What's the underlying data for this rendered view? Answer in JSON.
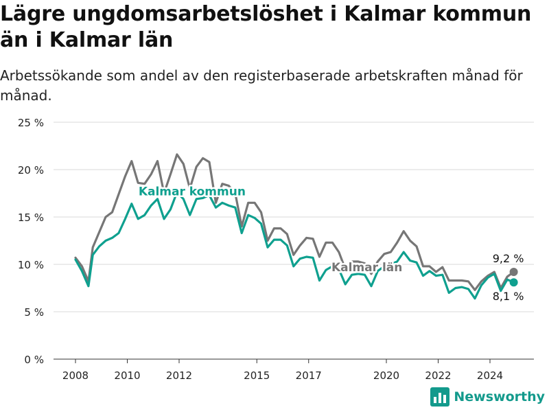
{
  "title": "Lägre ungdomsarbetslöshet i Kalmar kommun än i Kalmar län",
  "subtitle": "Arbetssökande som andel av den registerbaserade arbetskraften månad för månad.",
  "brand": "Newsworthy",
  "colors": {
    "kommun": "#0fa08f",
    "lan": "#767676",
    "grid": "#d9d9d9",
    "text": "#222222"
  },
  "chart_data": {
    "type": "line",
    "xlabel": "",
    "ylabel": "",
    "ylim": [
      0,
      25
    ],
    "xlim": [
      "2007-01",
      "2025-12"
    ],
    "grid": true,
    "legend": "inline labels",
    "yticks": [
      0,
      5,
      10,
      15,
      20,
      25
    ],
    "yticklabels": [
      "0 %",
      "5 %",
      "10 %",
      "15 %",
      "20 %",
      "25 %"
    ],
    "xticks": [
      "2008-01",
      "2010-01",
      "2012-01",
      "2015-01",
      "2017-01",
      "2020-01",
      "2022-01",
      "2024-01"
    ],
    "xticklabels": [
      "2008",
      "2010",
      "2012",
      "2015",
      "2017",
      "2020",
      "2022",
      "2024"
    ],
    "series": [
      {
        "name": "Kalmar län",
        "color": "#767676",
        "points": [
          [
            "2008-01",
            10.7
          ],
          [
            "2008-04",
            9.8
          ],
          [
            "2008-07",
            8.2
          ],
          [
            "2008-09",
            11.8
          ],
          [
            "2008-12",
            13.4
          ],
          [
            "2009-03",
            15.0
          ],
          [
            "2009-06",
            15.5
          ],
          [
            "2009-09",
            17.4
          ],
          [
            "2009-12",
            19.3
          ],
          [
            "2010-03",
            20.9
          ],
          [
            "2010-06",
            18.6
          ],
          [
            "2010-09",
            18.5
          ],
          [
            "2010-12",
            19.5
          ],
          [
            "2011-03",
            20.9
          ],
          [
            "2011-06",
            17.5
          ],
          [
            "2011-09",
            19.5
          ],
          [
            "2011-12",
            21.6
          ],
          [
            "2012-03",
            20.6
          ],
          [
            "2012-06",
            18.0
          ],
          [
            "2012-09",
            20.3
          ],
          [
            "2012-12",
            21.2
          ],
          [
            "2013-03",
            20.8
          ],
          [
            "2013-06",
            16.5
          ],
          [
            "2013-09",
            18.5
          ],
          [
            "2013-12",
            18.3
          ],
          [
            "2014-03",
            17.5
          ],
          [
            "2014-06",
            14.0
          ],
          [
            "2014-09",
            16.5
          ],
          [
            "2014-12",
            16.5
          ],
          [
            "2015-03",
            15.5
          ],
          [
            "2015-06",
            12.5
          ],
          [
            "2015-09",
            13.8
          ],
          [
            "2015-12",
            13.8
          ],
          [
            "2016-03",
            13.2
          ],
          [
            "2016-06",
            11.0
          ],
          [
            "2016-09",
            12.0
          ],
          [
            "2016-12",
            12.8
          ],
          [
            "2017-03",
            12.7
          ],
          [
            "2017-06",
            10.8
          ],
          [
            "2017-09",
            12.3
          ],
          [
            "2017-12",
            12.3
          ],
          [
            "2018-03",
            11.3
          ],
          [
            "2018-06",
            9.5
          ],
          [
            "2018-09",
            10.3
          ],
          [
            "2018-12",
            10.3
          ],
          [
            "2019-03",
            10.1
          ],
          [
            "2019-06",
            9.0
          ],
          [
            "2019-09",
            10.3
          ],
          [
            "2019-12",
            11.1
          ],
          [
            "2020-03",
            11.3
          ],
          [
            "2020-06",
            12.3
          ],
          [
            "2020-09",
            13.5
          ],
          [
            "2020-12",
            12.5
          ],
          [
            "2021-03",
            11.9
          ],
          [
            "2021-06",
            9.8
          ],
          [
            "2021-09",
            9.8
          ],
          [
            "2021-12",
            9.2
          ],
          [
            "2022-03",
            9.7
          ],
          [
            "2022-06",
            8.3
          ],
          [
            "2022-09",
            8.3
          ],
          [
            "2022-12",
            8.3
          ],
          [
            "2023-03",
            8.2
          ],
          [
            "2023-06",
            7.3
          ],
          [
            "2023-09",
            8.2
          ],
          [
            "2023-12",
            8.8
          ],
          [
            "2024-03",
            9.2
          ],
          [
            "2024-06",
            7.5
          ],
          [
            "2024-09",
            8.7
          ],
          [
            "2024-12",
            9.2
          ]
        ]
      },
      {
        "name": "Kalmar kommun",
        "color": "#0fa08f",
        "points": [
          [
            "2008-01",
            10.5
          ],
          [
            "2008-04",
            9.3
          ],
          [
            "2008-07",
            7.7
          ],
          [
            "2008-09",
            11.0
          ],
          [
            "2008-12",
            11.9
          ],
          [
            "2009-03",
            12.5
          ],
          [
            "2009-06",
            12.8
          ],
          [
            "2009-09",
            13.3
          ],
          [
            "2009-12",
            14.8
          ],
          [
            "2010-03",
            16.4
          ],
          [
            "2010-06",
            14.8
          ],
          [
            "2010-09",
            15.2
          ],
          [
            "2010-12",
            16.2
          ],
          [
            "2011-03",
            16.9
          ],
          [
            "2011-06",
            14.8
          ],
          [
            "2011-09",
            15.8
          ],
          [
            "2011-12",
            17.6
          ],
          [
            "2012-03",
            16.9
          ],
          [
            "2012-06",
            15.2
          ],
          [
            "2012-09",
            16.9
          ],
          [
            "2012-12",
            17.0
          ],
          [
            "2013-03",
            17.3
          ],
          [
            "2013-06",
            16.0
          ],
          [
            "2013-09",
            16.5
          ],
          [
            "2013-12",
            16.2
          ],
          [
            "2014-03",
            16.0
          ],
          [
            "2014-06",
            13.3
          ],
          [
            "2014-09",
            15.2
          ],
          [
            "2014-12",
            14.9
          ],
          [
            "2015-03",
            14.3
          ],
          [
            "2015-06",
            11.8
          ],
          [
            "2015-09",
            12.6
          ],
          [
            "2015-12",
            12.6
          ],
          [
            "2016-03",
            12.0
          ],
          [
            "2016-06",
            9.8
          ],
          [
            "2016-09",
            10.6
          ],
          [
            "2016-12",
            10.8
          ],
          [
            "2017-03",
            10.7
          ],
          [
            "2017-06",
            8.3
          ],
          [
            "2017-09",
            9.4
          ],
          [
            "2017-12",
            9.8
          ],
          [
            "2018-03",
            9.5
          ],
          [
            "2018-06",
            7.9
          ],
          [
            "2018-09",
            8.9
          ],
          [
            "2018-12",
            9.0
          ],
          [
            "2019-03",
            8.9
          ],
          [
            "2019-06",
            7.7
          ],
          [
            "2019-09",
            9.3
          ],
          [
            "2019-12",
            9.8
          ],
          [
            "2020-03",
            10.0
          ],
          [
            "2020-06",
            10.3
          ],
          [
            "2020-09",
            11.3
          ],
          [
            "2020-12",
            10.4
          ],
          [
            "2021-03",
            10.2
          ],
          [
            "2021-06",
            8.8
          ],
          [
            "2021-09",
            9.3
          ],
          [
            "2021-12",
            8.8
          ],
          [
            "2022-03",
            8.9
          ],
          [
            "2022-06",
            7.0
          ],
          [
            "2022-09",
            7.5
          ],
          [
            "2022-12",
            7.6
          ],
          [
            "2023-03",
            7.4
          ],
          [
            "2023-06",
            6.4
          ],
          [
            "2023-09",
            7.8
          ],
          [
            "2023-12",
            8.6
          ],
          [
            "2024-03",
            9.0
          ],
          [
            "2024-06",
            7.2
          ],
          [
            "2024-09",
            8.4
          ],
          [
            "2024-12",
            8.1
          ]
        ]
      }
    ],
    "annotations": [
      {
        "series": "Kalmar kommun",
        "text": "Kalmar kommun",
        "at": "2012-07",
        "value": 17.7
      },
      {
        "series": "Kalmar län",
        "text": "Kalmar län",
        "at": "2019-04",
        "value": 9.7
      },
      {
        "series": "Kalmar län",
        "text": "9,2 %",
        "at": "2024-12",
        "value": 9.2,
        "role": "end-label"
      },
      {
        "series": "Kalmar kommun",
        "text": "8,1 %",
        "at": "2024-12",
        "value": 8.1,
        "role": "end-label"
      }
    ]
  }
}
